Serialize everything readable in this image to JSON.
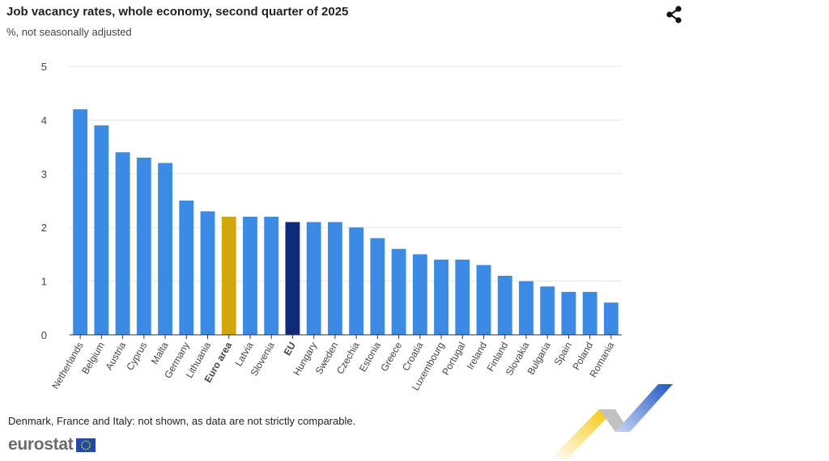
{
  "header": {
    "title": "Job vacancy rates, whole economy, second quarter of 2025",
    "subtitle": "%, not seasonally adjusted"
  },
  "icons": {
    "share": "share-icon",
    "eu_flag": "eu-flag-icon"
  },
  "footer": {
    "note": "Denmark, France and Italy: not shown, as data are not strictly comparable.",
    "brand": "eurostat"
  },
  "colors": {
    "bar": "#3b8ae3",
    "euro_area": "#d3a60c",
    "eu": "#0e2a78",
    "grid": "#e6e6e6",
    "axis": "#333333",
    "deco_yellow": "#f6c400",
    "deco_blue": "#1f55c7",
    "deco_grey": "#bdbdbd"
  },
  "chart_data": {
    "type": "bar",
    "categories": [
      "Netherlands",
      "Belgium",
      "Austria",
      "Cyprus",
      "Malta",
      "Germany",
      "Lithuania",
      "Euro area",
      "Latvia",
      "Slovenia",
      "EU",
      "Hungary",
      "Sweden",
      "Czechia",
      "Estonia",
      "Greece",
      "Croatia",
      "Luxembourg",
      "Portugal",
      "Ireland",
      "Finland",
      "Slovakia",
      "Bulgaria",
      "Spain",
      "Poland",
      "Romania"
    ],
    "values": [
      4.2,
      3.9,
      3.4,
      3.3,
      3.2,
      2.5,
      2.3,
      2.2,
      2.2,
      2.2,
      2.1,
      2.1,
      2.1,
      2.0,
      1.8,
      1.6,
      1.5,
      1.4,
      1.4,
      1.3,
      1.1,
      1.0,
      0.9,
      0.8,
      0.8,
      0.6
    ],
    "highlight": {
      "Euro area": "euro_area",
      "EU": "eu"
    },
    "bold_labels": [
      "Euro area",
      "EU"
    ],
    "y_ticks": [
      "0",
      "1",
      "2",
      "3",
      "4",
      "5"
    ],
    "ylim": [
      0,
      5
    ],
    "grid": true,
    "legend": "none",
    "xlabel": "",
    "ylabel": ""
  }
}
